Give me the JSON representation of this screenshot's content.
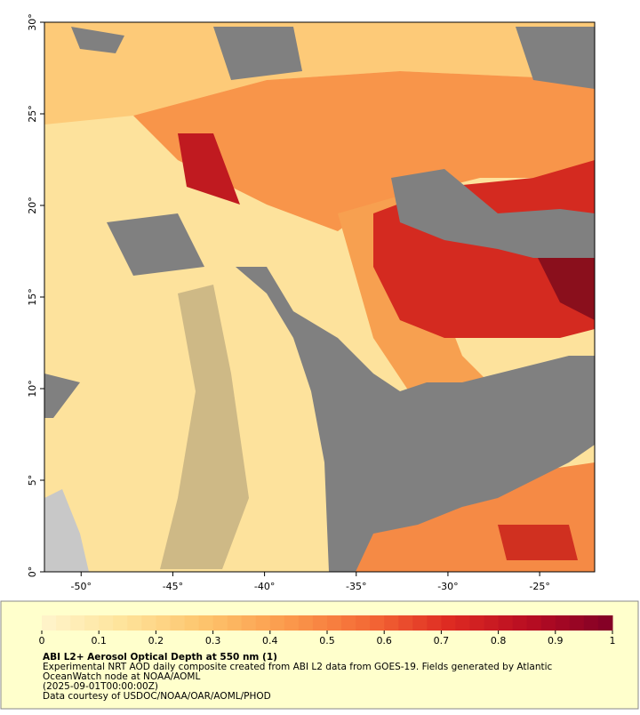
{
  "map": {
    "xlim": [
      -52,
      -22
    ],
    "ylim": [
      0,
      30
    ],
    "xticks": [
      {
        "value": -50,
        "label": "-50°"
      },
      {
        "value": -45,
        "label": "-45°"
      },
      {
        "value": -40,
        "label": "-40°"
      },
      {
        "value": -35,
        "label": "-35°"
      },
      {
        "value": -30,
        "label": "-30°"
      },
      {
        "value": -25,
        "label": "-25°"
      }
    ],
    "yticks": [
      {
        "value": 0,
        "label": "0°"
      },
      {
        "value": 5,
        "label": "5°"
      },
      {
        "value": 10,
        "label": "10°"
      },
      {
        "value": 15,
        "label": "15°"
      },
      {
        "value": 20,
        "label": "20°"
      },
      {
        "value": 25,
        "label": "25°"
      },
      {
        "value": 30,
        "label": "30°"
      }
    ]
  },
  "colorbar": {
    "lim": [
      0,
      1
    ],
    "ticks": [
      0,
      0.1,
      0.2,
      0.3,
      0.4,
      0.5,
      0.6,
      0.7,
      0.8,
      0.9,
      1
    ],
    "colors": [
      "#fff5cc",
      "#fee39a",
      "#fdc46c",
      "#fb9a4c",
      "#f46a36",
      "#de2a22",
      "#b70c22",
      "#800026"
    ]
  },
  "caption": {
    "title": "ABI L2+ Aerosol Optical Depth at 550 nm (1)",
    "description": "Experimental NRT AOD daily composite created from ABI L2 data from GOES-19. Fields generated by Atlantic",
    "description_cont": "OceanWatch node at NOAA/AOML",
    "time": "(2025-09-01T00:00:00Z)",
    "credit": "Data courtesy of USDOC/NOAA/OAR/AOML/PHOD"
  }
}
